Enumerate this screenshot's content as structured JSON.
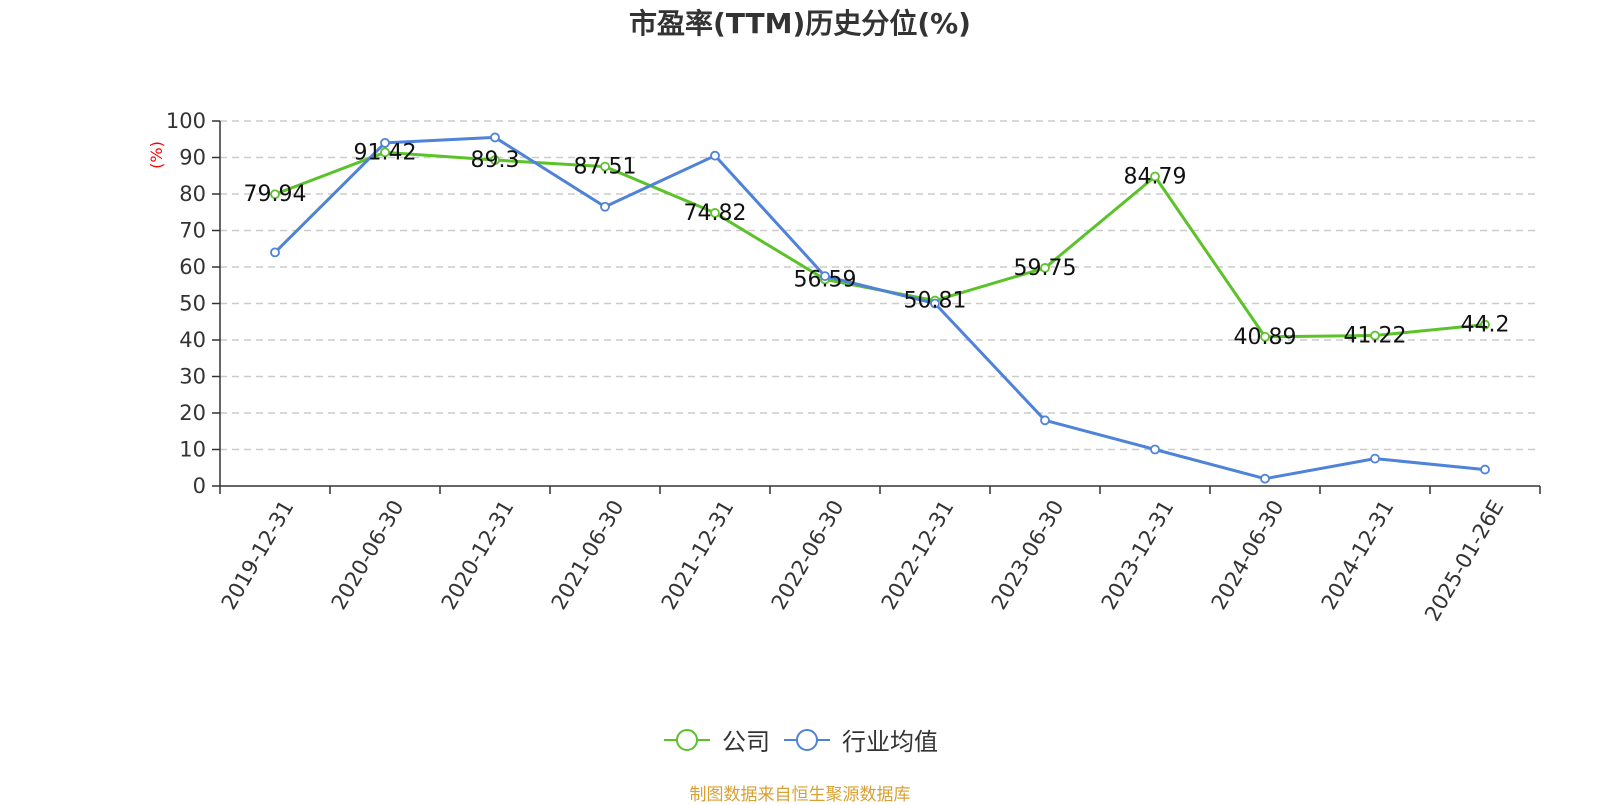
{
  "chart_data": {
    "type": "line",
    "title": "市盈率(TTM)历史分位(%)",
    "ylabel": "(%)",
    "xlabel": "",
    "ylim": [
      0,
      100
    ],
    "y_ticks": [
      0,
      10,
      20,
      30,
      40,
      50,
      60,
      70,
      80,
      90,
      100
    ],
    "grid": true,
    "legend_position": "bottom",
    "categories": [
      "2019-12-31",
      "2020-06-30",
      "2020-12-31",
      "2021-06-30",
      "2021-12-31",
      "2022-06-30",
      "2022-12-31",
      "2023-06-30",
      "2023-12-31",
      "2024-06-30",
      "2024-12-31",
      "2025-01-26E"
    ],
    "series": [
      {
        "name": "公司",
        "color": "#5cc22a",
        "values": [
          79.94,
          91.42,
          89.3,
          87.51,
          74.82,
          56.59,
          50.81,
          59.75,
          84.79,
          40.89,
          41.22,
          44.2
        ],
        "labels": [
          "79.94",
          "91.42",
          "89.3",
          "87.51",
          "74.82",
          "56.59",
          "50.81",
          "59.75",
          "84.79",
          "40.89",
          "41.22",
          "44.2"
        ]
      },
      {
        "name": "行业均值",
        "color": "#4f82d9",
        "values": [
          64.0,
          94.0,
          95.5,
          76.5,
          90.5,
          57.5,
          50.0,
          18.0,
          10.0,
          2.0,
          7.5,
          4.5
        ]
      }
    ]
  },
  "ylabel_color": "#ff0000",
  "source_note": "制图数据来自恒生聚源数据库"
}
